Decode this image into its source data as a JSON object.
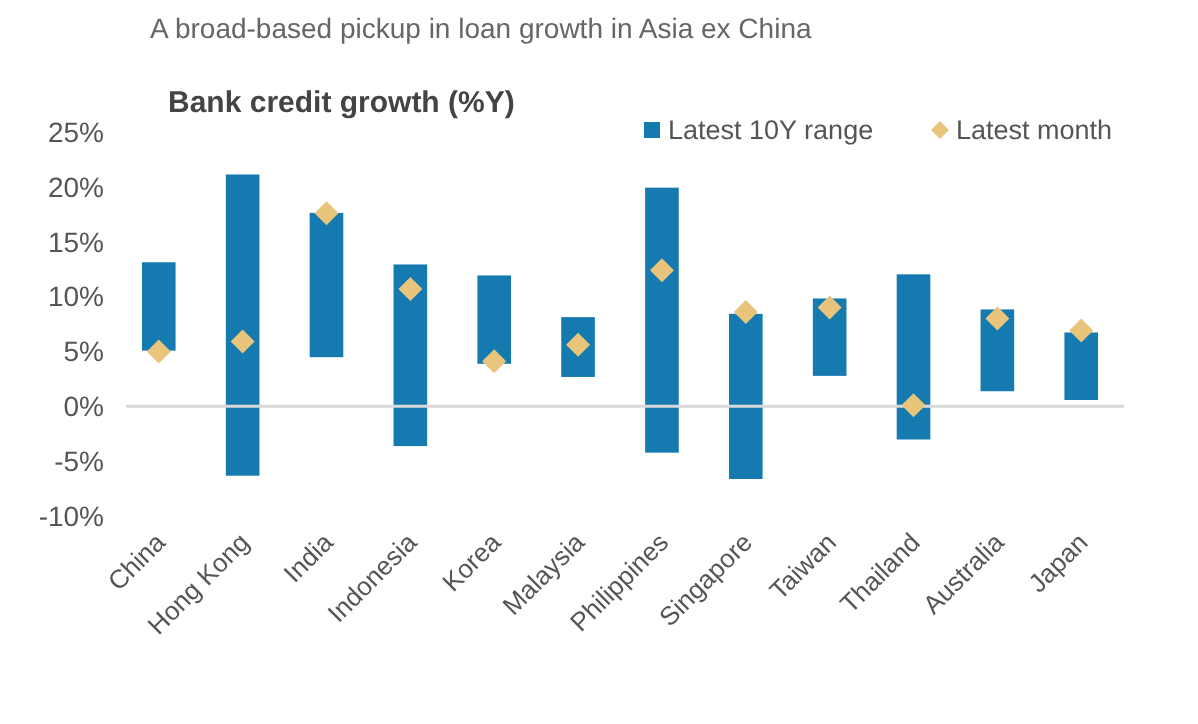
{
  "chart_data": {
    "type": "bar",
    "title": "A broad-based pickup in loan growth in Asia ex China",
    "subtitle": "Bank credit growth (%Y)",
    "categories": [
      "China",
      "Hong Kong",
      "India",
      "Indonesia",
      "Korea",
      "Malaysia",
      "Philippines",
      "Singapore",
      "Taiwan",
      "Thailand",
      "Australia",
      "Japan"
    ],
    "series": [
      {
        "name": "Latest 10Y range",
        "color": "#157ab0",
        "base": [
          5.0,
          -6.4,
          4.4,
          -3.7,
          3.8,
          2.6,
          -4.3,
          -6.7,
          2.7,
          -3.1,
          1.3,
          0.5
        ],
        "values": [
          8.2,
          27.6,
          13.3,
          16.7,
          8.2,
          5.6,
          24.3,
          15.2,
          7.2,
          15.2,
          7.6,
          6.3
        ]
      },
      {
        "name": "Latest month",
        "type": "scatter",
        "marker": "diamond",
        "color": "#e8c57a",
        "values": [
          5.0,
          5.9,
          17.6,
          10.7,
          4.1,
          5.6,
          12.4,
          8.6,
          9.0,
          0.1,
          8.0,
          6.9
        ]
      }
    ],
    "ylim": [
      -10,
      25
    ],
    "yticks": [
      {
        "value": -10,
        "label": "-10%"
      },
      {
        "value": -5,
        "label": "-5%"
      },
      {
        "value": 0,
        "label": "0%"
      },
      {
        "value": 5,
        "label": "5%"
      },
      {
        "value": 10,
        "label": "10%"
      },
      {
        "value": 15,
        "label": "15%"
      },
      {
        "value": 20,
        "label": "20%"
      },
      {
        "value": 25,
        "label": "25%"
      }
    ],
    "legend": "top right"
  }
}
